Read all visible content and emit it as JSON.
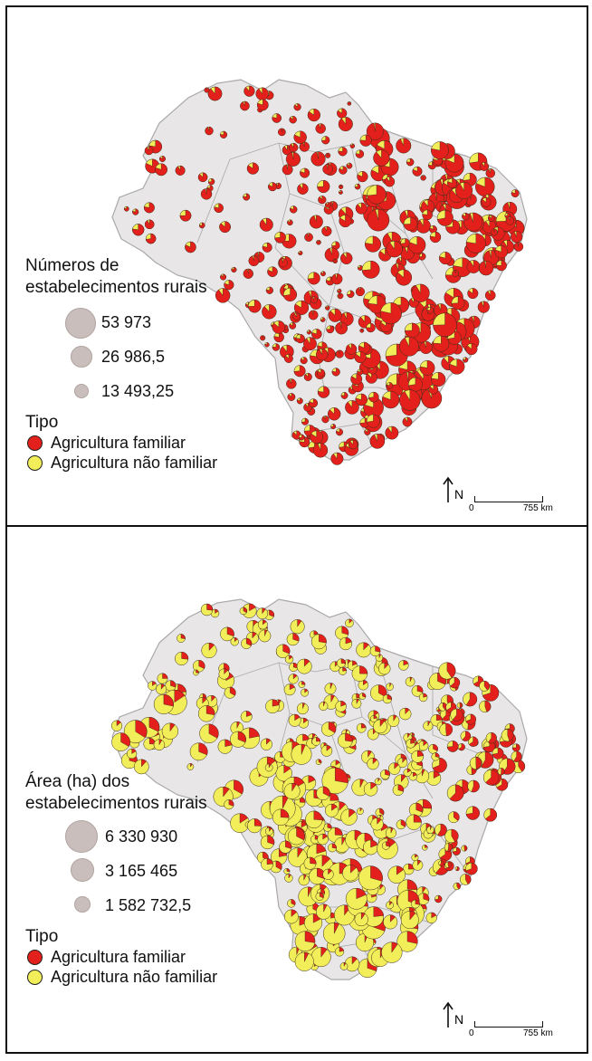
{
  "panels": [
    {
      "legend_title": "Números de estabelecimentos rurais",
      "sizes": [
        {
          "label": "53 973",
          "value": 53973
        },
        {
          "label": "26 986,5",
          "value": 26986.5
        },
        {
          "label": "13 493,25",
          "value": 13493.25
        }
      ],
      "tipo_title": "Tipo",
      "tipos": [
        {
          "label": "Agricultura familiar",
          "color": "#e3201b"
        },
        {
          "label": "Agricultura não familiar",
          "color": "#f2ee5a"
        }
      ],
      "north": "N",
      "scale_zero": "0",
      "scale_km": "755 km"
    },
    {
      "legend_title": "Área (ha) dos estabelecimentos rurais",
      "sizes": [
        {
          "label": "6 330 930",
          "value": 6330930
        },
        {
          "label": "3 165 465",
          "value": 3165465
        },
        {
          "label": "1 582 732,5",
          "value": 1582732.5
        }
      ],
      "tipo_title": "Tipo",
      "tipos": [
        {
          "label": "Agricultura familiar",
          "color": "#e3201b"
        },
        {
          "label": "Agricultura não familiar",
          "color": "#f2ee5a"
        }
      ],
      "north": "N",
      "scale_zero": "0",
      "scale_km": "755 km"
    }
  ],
  "colors": {
    "familiar": "#e3201b",
    "nao_familiar": "#f2ee5a",
    "land": "#e8e6e7",
    "border": "#a9a9a9",
    "size_symbol": "#c9bebb"
  }
}
